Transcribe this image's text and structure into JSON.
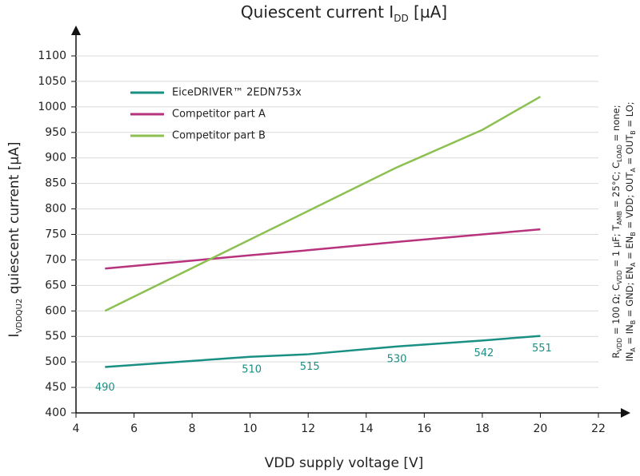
{
  "chart_data": {
    "type": "line",
    "title": [
      "Quiescent current I",
      "DD",
      " [µA]"
    ],
    "x_label": "VDD supply voltage [V]",
    "y_label": [
      "I",
      "VDDQU2",
      " quiescent current [µA]"
    ],
    "annotation": [
      [
        "R",
        "VDD",
        " = 100 Ω; C",
        "VDD",
        " = 1 µF; T",
        "AMB",
        " = 25°C; C",
        "LOAD",
        " = none;"
      ],
      [
        "IN",
        "A",
        " = IN",
        "B",
        " = GND; EN",
        "A",
        " = EN",
        "B",
        " = VDD; OUT",
        "A",
        " = OUT",
        "B",
        " = LO;"
      ]
    ],
    "x": [
      5,
      10,
      12,
      15,
      18,
      20
    ],
    "series": [
      {
        "name": "EiceDRIVER™ 2EDN753x",
        "color": "#1a8f83",
        "values": [
          490,
          510,
          515,
          530,
          542,
          551
        ],
        "data_labels": true
      },
      {
        "name": "Competitor part A",
        "color": "#b8337e",
        "values": [
          683,
          709,
          719,
          735,
          750,
          760
        ]
      },
      {
        "name": "Competitor part B",
        "color": "#8cc152",
        "values": [
          600,
          740,
          796,
          880,
          955,
          1020
        ]
      }
    ],
    "xlim": [
      4,
      22
    ],
    "xticks": [
      4,
      6,
      8,
      10,
      12,
      14,
      16,
      18,
      20,
      22
    ],
    "ylim": [
      400,
      1100
    ],
    "yticks": [
      400,
      450,
      500,
      550,
      600,
      650,
      700,
      750,
      800,
      850,
      900,
      950,
      1000,
      1050,
      1100
    ],
    "grid": true,
    "legend": "upper left"
  }
}
